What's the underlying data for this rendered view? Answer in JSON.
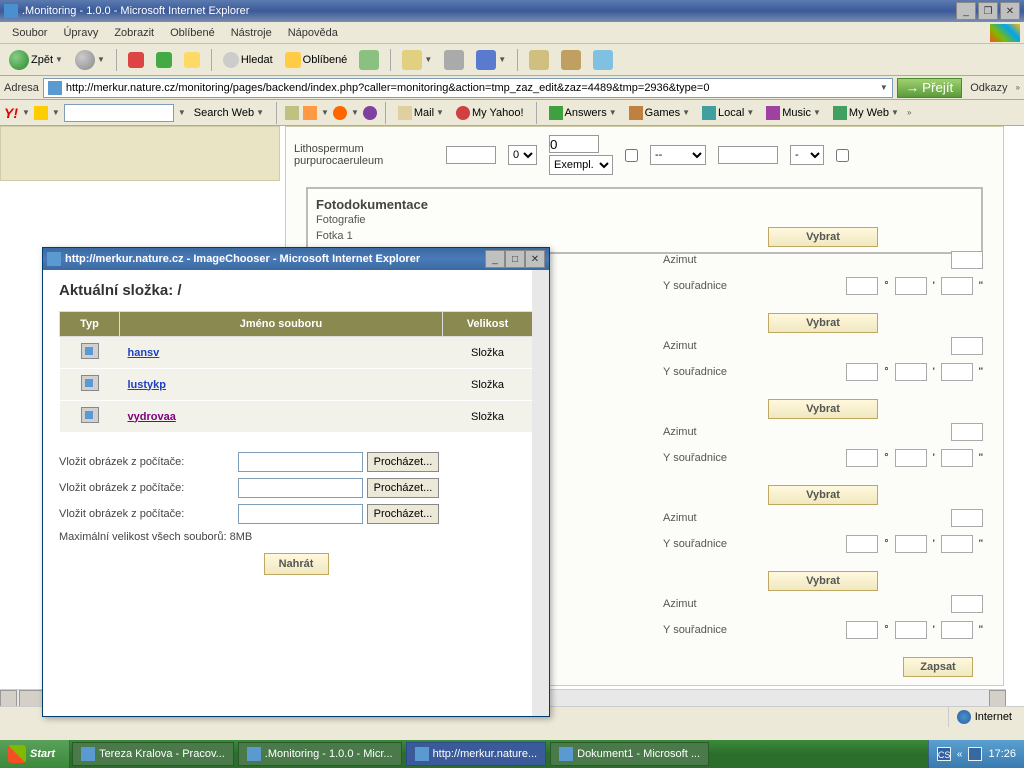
{
  "main_window": {
    "title": ".Monitoring - 1.0.0 - Microsoft Internet Explorer",
    "menu": {
      "soubor": "Soubor",
      "upravy": "Úpravy",
      "zobrazit": "Zobrazit",
      "oblibene": "Oblíbené",
      "nastroje": "Nástroje",
      "napoveda": "Nápověda"
    },
    "toolbar": {
      "back": "Zpět",
      "search": "Hledat",
      "favorites": "Oblíbené"
    },
    "address": {
      "label": "Adresa",
      "url": "http://merkur.nature.cz/monitoring/pages/backend/index.php?caller=monitoring&action=tmp_zaz_edit&zaz=4489&tmp=2936&type=0",
      "go": "Přejít",
      "links": "Odkazy"
    },
    "yahoo": {
      "logo": "Y!",
      "search": "Search Web",
      "mail": "Mail",
      "myyahoo": "My Yahoo!",
      "answers": "Answers",
      "games": "Games",
      "local": "Local",
      "music": "Music",
      "myweb": "My Web"
    },
    "species": {
      "name": "Lithospermum purpurocaeruleum",
      "zero": "0",
      "selval": "0",
      "exempl": "Exempl.",
      "dashes": "--",
      "dash": "-"
    },
    "foto": {
      "title": "Fotodokumentace",
      "sub1": "Fotografie",
      "sub2": "Fotka 1"
    },
    "fields": {
      "vybrat": "Vybrat",
      "azimut": "Azimut",
      "ysour": "Y souřadnice",
      "deg": "°",
      "min": "'",
      "sec": "''",
      "zapsat": "Zapsat"
    },
    "statusbar": {
      "internet": "Internet"
    }
  },
  "popup": {
    "title": "http://merkur.nature.cz - ImageChooser - Microsoft Internet Explorer",
    "heading": "Aktuální složka: /",
    "cols": {
      "typ": "Typ",
      "name": "Jméno souboru",
      "size": "Velikost"
    },
    "rows": [
      {
        "name": "hansv",
        "size": "Složka",
        "visited": false
      },
      {
        "name": "lustykp",
        "size": "Složka",
        "visited": false
      },
      {
        "name": "vydrovaa",
        "size": "Složka",
        "visited": true
      }
    ],
    "upload_label": "Vložit obrázek z počítače:",
    "browse": "Procházet...",
    "max": "Maximální velikost všech souborů: 8MB",
    "submit": "Nahrát"
  },
  "taskbar": {
    "start": "Start",
    "tasks": [
      "Tereza Kralova - Pracov...",
      ".Monitoring - 1.0.0 - Micr...",
      "http://merkur.nature...",
      "Dokument1 - Microsoft ..."
    ],
    "lang": "CS",
    "clock": "17:26"
  }
}
